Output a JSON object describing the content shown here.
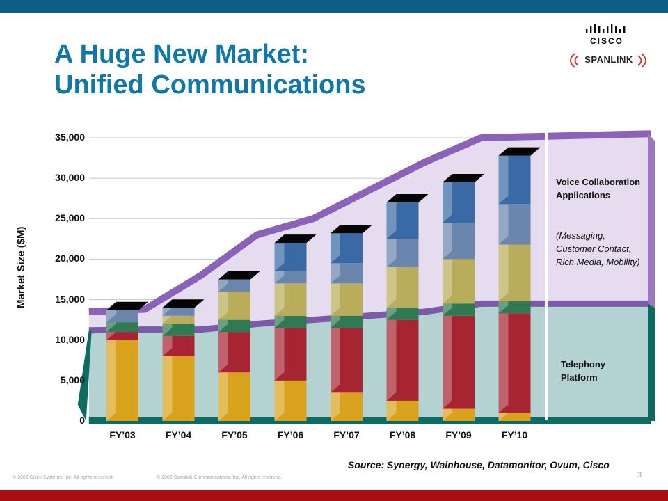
{
  "slide": {
    "title_line1": "A Huge New Market:",
    "title_line2": "Unified Communications",
    "logo_cisco": "CISCO",
    "logo_spanlink": "SPANLINK",
    "source": "Source: Synergy, Wainhouse, Datamonitor, Ovum, Cisco",
    "footer_left": "© 2006 Cisco Systems, Inc. All rights reserved.",
    "footer_center": "© 2006 Spanlink Communications, Inc. All rights reserved.",
    "page_number": "3",
    "colors": {
      "title": "#0f77aa",
      "top_bar": "#0e5f86",
      "bottom_bar": "#a90f12",
      "voice_band": "#9b76c2",
      "telephony_band": "#0e6b64"
    }
  },
  "chart_data": {
    "type": "bar",
    "stacked": true,
    "categories": [
      "FY’03",
      "FY’04",
      "FY’05",
      "FY’06",
      "FY’07",
      "FY’08",
      "FY’09",
      "FY’10"
    ],
    "series": [
      {
        "color": "#d9a21c",
        "values": [
          10000,
          8000,
          6000,
          5000,
          3500,
          2500,
          1500,
          1000
        ]
      },
      {
        "color": "#a72532",
        "values": [
          1000,
          2500,
          5000,
          6500,
          8000,
          10000,
          11500,
          12300
        ]
      },
      {
        "color": "#2f7a52",
        "values": [
          1200,
          1500,
          1500,
          1500,
          1500,
          1500,
          1500,
          1500
        ]
      },
      {
        "color": "#b9ad5c",
        "values": [
          0,
          1000,
          3500,
          4000,
          4000,
          5000,
          5500,
          7000
        ]
      },
      {
        "color": "#6b86ad",
        "values": [
          1500,
          1000,
          1500,
          1500,
          2500,
          3500,
          4500,
          5000
        ]
      },
      {
        "color": "#3a6aa6",
        "values": [
          0,
          0,
          0,
          3500,
          3700,
          4500,
          5000,
          6000
        ]
      }
    ],
    "ylabel": "Market Size ($M)",
    "ylim": [
      0,
      35000
    ],
    "yticks": [
      0,
      5000,
      10000,
      15000,
      20000,
      25000,
      30000,
      35000
    ],
    "ytick_labels": [
      "0",
      "5,000",
      "10,000",
      "15,000",
      "20,000",
      "25,000",
      "30,000",
      "35,000"
    ],
    "grid": true,
    "bands": [
      {
        "name": "Voice Collaboration Applications",
        "note": "(Messaging, Customer Contact, Rich Media, Mobility)",
        "upper": [
          13500,
          13800,
          18000,
          23000,
          25000,
          28500,
          32000,
          35000,
          35500
        ],
        "lower": [
          11200,
          11300,
          11300,
          12000,
          12500,
          13000,
          13500,
          14500,
          14500
        ]
      },
      {
        "name": "Telephony Platform",
        "upper": [
          11200,
          11300,
          11300,
          12000,
          12500,
          13000,
          13500,
          14500,
          14500
        ],
        "lower": [
          0,
          0,
          0,
          0,
          0,
          0,
          0,
          0,
          0
        ]
      }
    ]
  }
}
